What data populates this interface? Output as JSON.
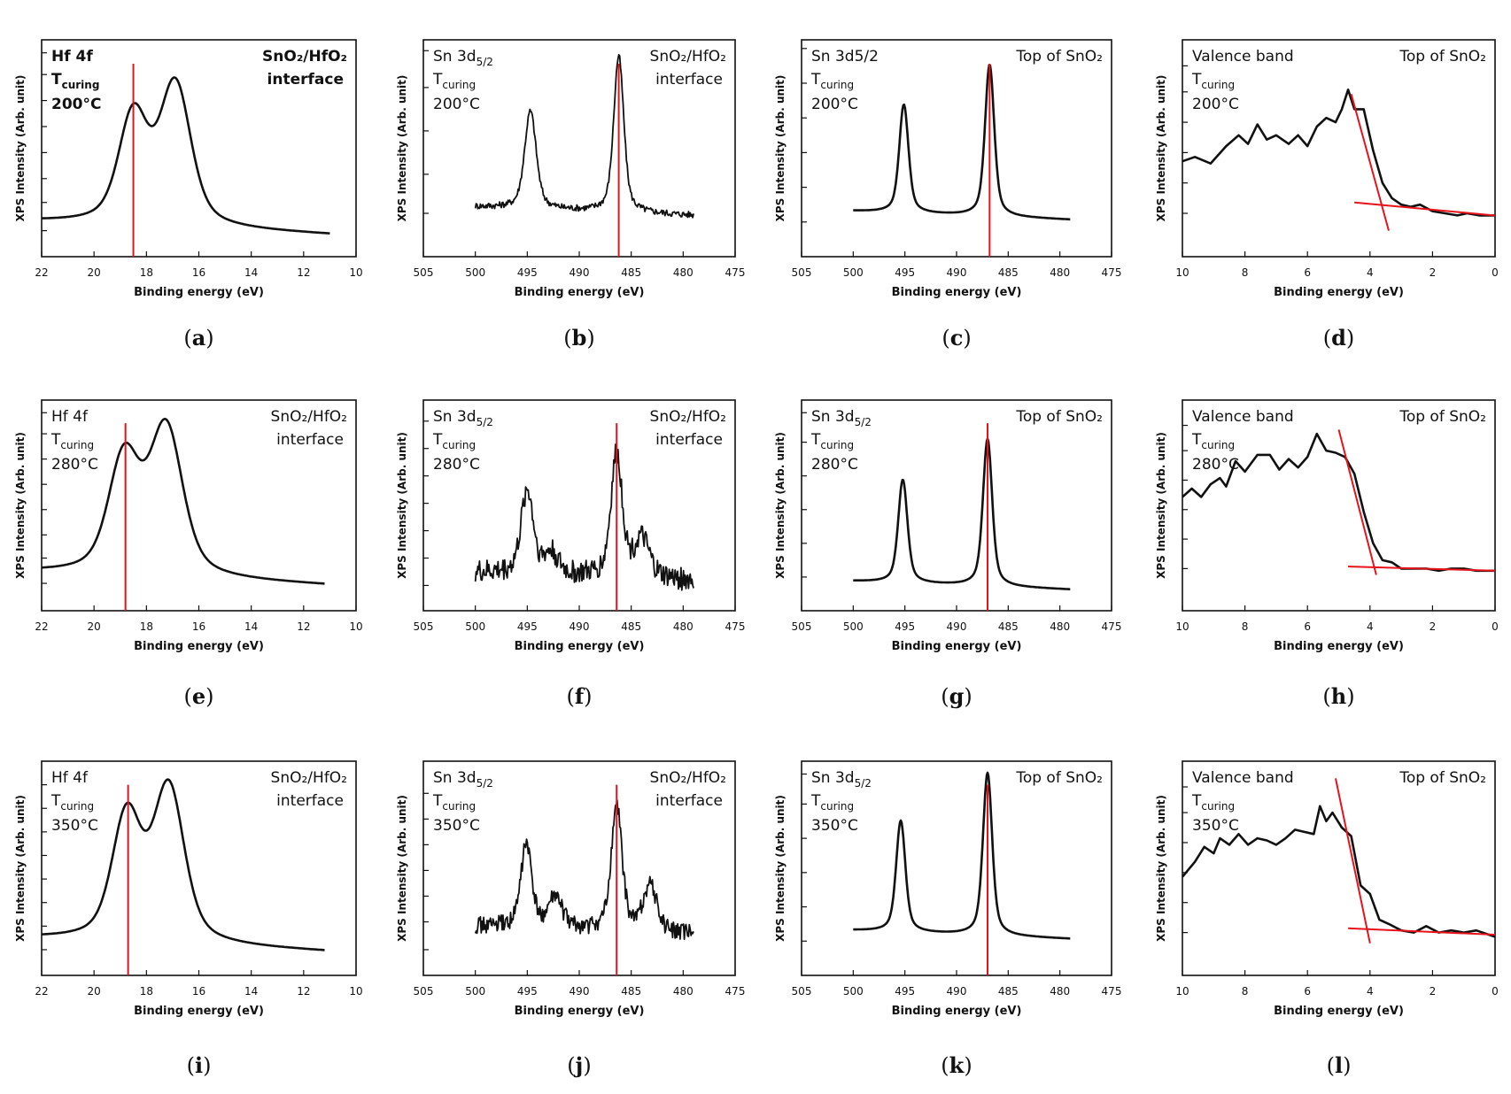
{
  "figure": {
    "title": ""
  },
  "chart_data": [
    {
      "id": "a",
      "type": "line",
      "subfig_label": "a",
      "xlabel": "Binding energy (eV)",
      "ylabel": "XPS Intensity (Arb. unit)",
      "xlim": [
        22,
        10
      ],
      "xticks": [
        22,
        20,
        18,
        16,
        14,
        12,
        10
      ],
      "ylim": [
        0,
        10
      ],
      "yticks": [
        1.2,
        2.5,
        3.6,
        4.8,
        6.0,
        7.2,
        8.4,
        9.4
      ],
      "annotations": {
        "line1": "Hf 4f",
        "line2_main": "T",
        "line2_sub": "curing",
        "line3": "200°C",
        "right1": "SnO₂/HfO₂",
        "right2": "interface"
      },
      "bold_annotations": true,
      "marker_x": 18.5,
      "series": [
        {
          "name": "Hf 4f",
          "type": "doublet",
          "x0": 22,
          "x1": 11,
          "baseline": 1.6,
          "baseline_end": 1.0,
          "peaks": [
            {
              "pos": 18.5,
              "height": 5.0,
              "width": 0.75
            },
            {
              "pos": 16.9,
              "height": 6.5,
              "width": 0.8
            }
          ]
        }
      ]
    },
    {
      "id": "b",
      "type": "line",
      "subfig_label": "b",
      "xlabel": "Binding energy (eV)",
      "ylabel": "XPS Intensity (Arb. unit)",
      "xlim": [
        505,
        475
      ],
      "xticks": [
        505,
        500,
        495,
        490,
        485,
        480,
        475
      ],
      "ylim": [
        0,
        10
      ],
      "yticks": [
        2.0,
        3.8,
        5.8,
        7.8,
        9.5
      ],
      "annotations": {
        "line1": "Sn 3d",
        "line1_sub": "5/2",
        "line2_main": "T",
        "line2_sub": "curing",
        "line3": "200°C",
        "right1": "SnO₂/HfO₂",
        "right2": "interface"
      },
      "bold_annotations": false,
      "marker_x": 486.2,
      "series": [
        {
          "name": "Sn 3d",
          "type": "doublet",
          "x0": 500,
          "x1": 479,
          "baseline": 2.3,
          "baseline_end": 1.9,
          "noise": 0.15,
          "peaks": [
            {
              "pos": 494.7,
              "height": 4.5,
              "width": 0.75
            },
            {
              "pos": 486.2,
              "height": 7.2,
              "width": 0.65
            }
          ]
        }
      ]
    },
    {
      "id": "c",
      "type": "line",
      "subfig_label": "c",
      "xlabel": "Binding energy (eV)",
      "ylabel": "XPS Intensity (Arb. unit)",
      "xlim": [
        505,
        475
      ],
      "xticks": [
        505,
        500,
        495,
        490,
        485,
        480,
        475
      ],
      "ylim": [
        0,
        10
      ],
      "yticks": [
        1.6,
        3.2,
        4.8,
        6.4,
        8.0,
        9.6
      ],
      "annotations": {
        "line1": "Sn 3d5/2",
        "line2_main": "T",
        "line2_sub": "curing",
        "line3": "200°C",
        "right1": "Top of SnO₂",
        "right2": ""
      },
      "bold_annotations": false,
      "marker_x": 486.8,
      "series": [
        {
          "name": "Sn 3d",
          "type": "doublet",
          "x0": 500,
          "x1": 479,
          "baseline": 2.1,
          "baseline_end": 1.7,
          "peaks": [
            {
              "pos": 495.1,
              "height": 5.0,
              "width": 0.6
            },
            {
              "pos": 486.8,
              "height": 7.0,
              "width": 0.6
            }
          ]
        }
      ]
    },
    {
      "id": "d",
      "type": "line",
      "subfig_label": "d",
      "xlabel": "Binding energy (eV)",
      "ylabel": "XPS Intensity (Arb. unit)",
      "xlim": [
        10,
        0
      ],
      "xticks": [
        10,
        8,
        6,
        4,
        2,
        0
      ],
      "ylim": [
        0,
        10
      ],
      "yticks": [
        2.0,
        3.4,
        4.8,
        6.2,
        7.6,
        8.8
      ],
      "annotations": {
        "line1": "Valence band",
        "line2_main": "T",
        "line2_sub": "curing",
        "line3": "200°C",
        "right1": "Top of SnO₂",
        "right2": ""
      },
      "bold_annotations": false,
      "marker_x": null,
      "series": [
        {
          "name": "Valence band",
          "x": [
            10,
            9.6,
            9.1,
            8.6,
            8.2,
            7.9,
            7.6,
            7.3,
            7.0,
            6.6,
            6.3,
            6.0,
            5.7,
            5.4,
            5.1,
            4.9,
            4.7,
            4.5,
            4.2,
            3.9,
            3.6,
            3.3,
            3.0,
            2.7,
            2.4,
            2.0,
            1.6,
            1.2,
            0.9,
            0.5,
            0.0
          ],
          "y": [
            4.4,
            4.6,
            4.3,
            5.1,
            5.6,
            5.2,
            6.1,
            5.4,
            5.6,
            5.2,
            5.6,
            5.1,
            6.0,
            6.4,
            6.2,
            6.8,
            7.7,
            6.8,
            6.8,
            4.9,
            3.4,
            2.7,
            2.4,
            2.3,
            2.4,
            2.1,
            2.0,
            1.9,
            2.0,
            1.9,
            1.9
          ]
        }
      ],
      "fits": [
        {
          "x": [
            4.6,
            3.4
          ],
          "y": [
            7.5,
            1.2
          ]
        },
        {
          "x": [
            4.5,
            0.0
          ],
          "y": [
            2.5,
            1.9
          ]
        }
      ]
    },
    {
      "id": "e",
      "type": "line",
      "subfig_label": "e",
      "xlabel": "Binding energy (eV)",
      "ylabel": "XPS Intensity (Arb. unit)",
      "xlim": [
        22,
        10
      ],
      "xticks": [
        22,
        20,
        18,
        16,
        14,
        12,
        10
      ],
      "ylim": [
        0,
        10
      ],
      "yticks": [
        1.3,
        2.5,
        3.6,
        4.8,
        6.0,
        7.2,
        8.4,
        9.4
      ],
      "annotations": {
        "line1": "Hf 4f",
        "line2_main": "T",
        "line2_sub": "curing",
        "line3": "280°C",
        "right1": "SnO₂/HfO₂",
        "right2": "interface"
      },
      "bold_annotations": false,
      "marker_x": 18.8,
      "series": [
        {
          "name": "Hf 4f",
          "type": "doublet",
          "x0": 22,
          "x1": 11.2,
          "baseline": 1.8,
          "baseline_end": 1.2,
          "peaks": [
            {
              "pos": 18.85,
              "height": 5.5,
              "width": 0.8
            },
            {
              "pos": 17.25,
              "height": 7.0,
              "width": 0.85
            }
          ]
        }
      ]
    },
    {
      "id": "f",
      "type": "line",
      "subfig_label": "f",
      "xlabel": "Binding energy (eV)",
      "ylabel": "XPS Intensity (Arb. unit)",
      "xlim": [
        505,
        475
      ],
      "xticks": [
        505,
        500,
        495,
        490,
        485,
        480,
        475
      ],
      "ylim": [
        0,
        10
      ],
      "yticks": [
        1.2,
        2.5,
        3.8,
        5.1,
        6.4,
        7.7,
        9.0
      ],
      "annotations": {
        "line1": "Sn 3d",
        "line1_sub": "5/2",
        "line2_main": "T",
        "line2_sub": "curing",
        "line3": "280°C",
        "right1": "SnO₂/HfO₂",
        "right2": "interface"
      },
      "bold_annotations": false,
      "marker_x": 486.4,
      "series": [
        {
          "name": "Sn 3d",
          "type": "doublet",
          "x0": 500,
          "x1": 479,
          "baseline": 1.8,
          "baseline_end": 1.4,
          "noise": 0.55,
          "peaks": [
            {
              "pos": 495.0,
              "height": 4.0,
              "width": 0.8
            },
            {
              "pos": 492.7,
              "height": 1.0,
              "width": 0.9
            },
            {
              "pos": 486.4,
              "height": 5.8,
              "width": 0.75
            },
            {
              "pos": 484.0,
              "height": 1.8,
              "width": 1.0
            }
          ]
        }
      ]
    },
    {
      "id": "g",
      "type": "line",
      "subfig_label": "g",
      "xlabel": "Binding energy (eV)",
      "ylabel": "XPS Intensity (Arb. unit)",
      "xlim": [
        505,
        475
      ],
      "xticks": [
        505,
        500,
        495,
        490,
        485,
        480,
        475
      ],
      "ylim": [
        0,
        10
      ],
      "yticks": [
        1.6,
        3.2,
        4.8,
        6.4,
        8.0,
        9.4
      ],
      "annotations": {
        "line1": "Sn 3d",
        "line1_sub": "5/2",
        "line2_main": "T",
        "line2_sub": "curing",
        "line3": "280°C",
        "right1": "Top of SnO₂",
        "right2": ""
      },
      "bold_annotations": false,
      "marker_x": 487.0,
      "series": [
        {
          "name": "Sn 3d",
          "type": "doublet",
          "x0": 500,
          "x1": 479,
          "baseline": 1.4,
          "baseline_end": 1.0,
          "peaks": [
            {
              "pos": 495.2,
              "height": 4.9,
              "width": 0.6
            },
            {
              "pos": 487.0,
              "height": 7.0,
              "width": 0.6
            }
          ]
        }
      ]
    },
    {
      "id": "h",
      "type": "line",
      "subfig_label": "h",
      "xlabel": "Binding energy (eV)",
      "ylabel": "XPS Intensity (Arb. unit)",
      "xlim": [
        10,
        0
      ],
      "xticks": [
        10,
        8,
        6,
        4,
        2,
        0
      ],
      "ylim": [
        0,
        10
      ],
      "yticks": [
        2.0,
        3.4,
        4.8,
        6.2,
        7.6,
        8.8
      ],
      "annotations": {
        "line1": "Valence band",
        "line2_main": "T",
        "line2_sub": "curing",
        "line3": "280°C",
        "right1": "Top of SnO₂",
        "right2": ""
      },
      "bold_annotations": false,
      "marker_x": null,
      "series": [
        {
          "name": "Valence band",
          "x": [
            10,
            9.7,
            9.4,
            9.1,
            8.8,
            8.6,
            8.3,
            8.0,
            7.6,
            7.2,
            6.9,
            6.6,
            6.3,
            6.0,
            5.7,
            5.4,
            5.1,
            4.8,
            4.5,
            4.2,
            3.9,
            3.6,
            3.3,
            3.0,
            2.6,
            2.2,
            1.8,
            1.4,
            1.0,
            0.6,
            0.0
          ],
          "y": [
            5.4,
            5.8,
            5.4,
            6.0,
            6.3,
            5.9,
            7.1,
            6.6,
            7.4,
            7.4,
            6.7,
            7.2,
            6.8,
            7.3,
            8.4,
            7.6,
            7.5,
            7.3,
            6.5,
            4.7,
            3.2,
            2.4,
            2.3,
            2.0,
            2.0,
            2.0,
            1.9,
            2.0,
            2.0,
            1.9,
            1.9
          ]
        }
      ],
      "fits": [
        {
          "x": [
            5.0,
            3.8
          ],
          "y": [
            8.6,
            1.7
          ]
        },
        {
          "x": [
            4.7,
            0.0
          ],
          "y": [
            2.1,
            1.9
          ]
        }
      ]
    },
    {
      "id": "i",
      "type": "line",
      "subfig_label": "i",
      "xlabel": "Binding energy (eV)",
      "ylabel": "XPS Intensity (Arb. unit)",
      "xlim": [
        22,
        10
      ],
      "xticks": [
        22,
        20,
        18,
        16,
        14,
        12,
        10
      ],
      "ylim": [
        0,
        10
      ],
      "yticks": [
        1.2,
        2.3,
        3.4,
        4.5,
        5.6,
        6.7,
        7.8,
        8.9
      ],
      "annotations": {
        "line1": "Hf 4f",
        "line2_main": "T",
        "line2_sub": "curing",
        "line3": "350°C",
        "right1": "SnO₂/HfO₂",
        "right2": "interface"
      },
      "bold_annotations": false,
      "marker_x": 18.7,
      "series": [
        {
          "name": "Hf 4f",
          "type": "doublet",
          "x0": 22,
          "x1": 11.2,
          "baseline": 1.7,
          "baseline_end": 1.1,
          "peaks": [
            {
              "pos": 18.75,
              "height": 5.8,
              "width": 0.75
            },
            {
              "pos": 17.15,
              "height": 7.2,
              "width": 0.8
            }
          ]
        }
      ]
    },
    {
      "id": "j",
      "type": "line",
      "subfig_label": "j",
      "xlabel": "Binding energy (eV)",
      "ylabel": "XPS Intensity (Arb. unit)",
      "xlim": [
        505,
        475
      ],
      "xticks": [
        505,
        500,
        495,
        490,
        485,
        480,
        475
      ],
      "ylim": [
        0,
        10
      ],
      "yticks": [
        1.2,
        2.5,
        3.7,
        4.9,
        6.1,
        7.3,
        8.5
      ],
      "annotations": {
        "line1": "Sn 3d",
        "line1_sub": "5/2",
        "line2_main": "T",
        "line2_sub": "curing",
        "line3": "350°C",
        "right1": "SnO₂/HfO₂",
        "right2": "interface"
      },
      "bold_annotations": false,
      "marker_x": 486.4,
      "series": [
        {
          "name": "Sn 3d",
          "type": "doublet",
          "x0": 500,
          "x1": 479,
          "baseline": 2.3,
          "baseline_end": 1.9,
          "noise": 0.4,
          "peaks": [
            {
              "pos": 495.1,
              "height": 3.9,
              "width": 0.7
            },
            {
              "pos": 492.3,
              "height": 1.4,
              "width": 0.9
            },
            {
              "pos": 486.4,
              "height": 5.8,
              "width": 0.7
            },
            {
              "pos": 483.2,
              "height": 2.2,
              "width": 0.9
            }
          ]
        }
      ]
    },
    {
      "id": "k",
      "type": "line",
      "subfig_label": "k",
      "xlabel": "Binding energy (eV)",
      "ylabel": "XPS Intensity (Arb. unit)",
      "xlim": [
        505,
        475
      ],
      "xticks": [
        505,
        500,
        495,
        490,
        485,
        480,
        475
      ],
      "ylim": [
        0,
        10
      ],
      "yticks": [
        1.6,
        3.2,
        4.8,
        6.4,
        8.0,
        9.4
      ],
      "annotations": {
        "line1": "Sn 3d",
        "line1_sub": "5/2",
        "line2_main": "T",
        "line2_sub": "curing",
        "line3": "350°C",
        "right1": "Top of SnO₂",
        "right2": ""
      },
      "bold_annotations": false,
      "marker_x": 487.0,
      "series": [
        {
          "name": "Sn 3d",
          "type": "doublet",
          "x0": 500,
          "x1": 479,
          "baseline": 2.1,
          "baseline_end": 1.7,
          "peaks": [
            {
              "pos": 495.4,
              "height": 5.2,
              "width": 0.6
            },
            {
              "pos": 487.0,
              "height": 7.6,
              "width": 0.6
            }
          ]
        }
      ]
    },
    {
      "id": "l",
      "type": "line",
      "subfig_label": "l",
      "xlabel": "Binding energy (eV)",
      "ylabel": "XPS Intensity (Arb. unit)",
      "xlim": [
        10,
        0
      ],
      "xticks": [
        10,
        8,
        6,
        4,
        2,
        0
      ],
      "ylim": [
        0,
        10
      ],
      "yticks": [
        2.0,
        3.4,
        4.8,
        6.2,
        7.6,
        8.8
      ],
      "annotations": {
        "line1": "Valence band",
        "line2_main": "T",
        "line2_sub": "curing",
        "line3": "350°C",
        "right1": "Top of SnO₂",
        "right2": ""
      },
      "bold_annotations": false,
      "marker_x": null,
      "series": [
        {
          "name": "Valence band",
          "x": [
            10,
            9.6,
            9.3,
            9.0,
            8.8,
            8.5,
            8.2,
            7.9,
            7.6,
            7.3,
            7.0,
            6.7,
            6.4,
            6.1,
            5.8,
            5.6,
            5.4,
            5.2,
            4.9,
            4.6,
            4.3,
            4.0,
            3.7,
            3.4,
            3.0,
            2.6,
            2.2,
            1.8,
            1.4,
            1.0,
            0.6,
            0.0
          ],
          "y": [
            4.6,
            5.3,
            6.0,
            5.7,
            6.4,
            6.1,
            6.6,
            6.1,
            6.4,
            6.3,
            6.1,
            6.4,
            6.8,
            6.7,
            6.6,
            7.9,
            7.2,
            7.6,
            6.9,
            6.5,
            4.2,
            3.8,
            2.6,
            2.4,
            2.1,
            2.0,
            2.3,
            2.0,
            2.1,
            2.0,
            2.1,
            1.8
          ]
        }
      ],
      "fits": [
        {
          "x": [
            5.1,
            4.0
          ],
          "y": [
            9.2,
            1.5
          ]
        },
        {
          "x": [
            4.7,
            0.0
          ],
          "y": [
            2.2,
            1.9
          ]
        }
      ]
    }
  ]
}
